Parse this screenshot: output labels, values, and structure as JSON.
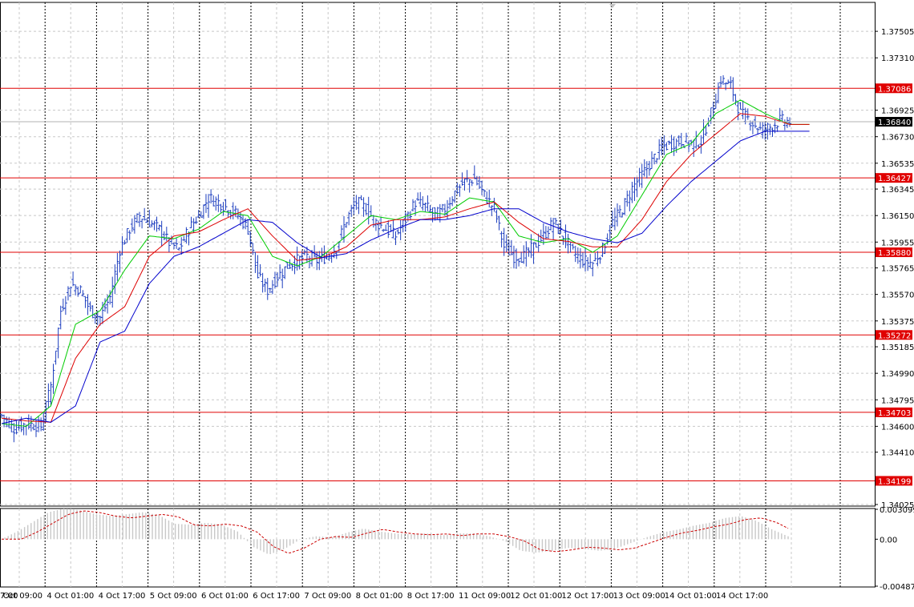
{
  "chart_data": [
    {
      "type": "candlestick",
      "panel": "price",
      "title": "",
      "xlabel": "",
      "ylabel": "",
      "ylim": [
        1.34025,
        1.377
      ],
      "y_ticks": [
        "1.37505",
        "1.37310",
        "1.36925",
        "1.36730",
        "1.36535",
        "1.36345",
        "1.36150",
        "1.35955",
        "1.35765",
        "1.35570",
        "1.35375",
        "1.35185",
        "1.34990",
        "1.34795",
        "1.34600",
        "1.34410",
        "1.34025"
      ],
      "x_ticks": [
        "7:00",
        "1 Oct 09:00",
        "4 Oct 01:00",
        "4 Oct 17:00",
        "5 Oct 09:00",
        "6 Oct 01:00",
        "6 Oct 17:00",
        "7 Oct 09:00",
        "8 Oct 01:00",
        "8 Oct 17:00",
        "11 Oct 09:00",
        "12 Oct 01:00",
        "12 Oct 17:00",
        "13 Oct 09:00",
        "14 Oct 01:00",
        "14 Oct 17:00"
      ],
      "grid": true,
      "horizontal_levels": [
        {
          "value": 1.37086,
          "label": "1.37086"
        },
        {
          "value": 1.36427,
          "label": "1.36427"
        },
        {
          "value": 1.3588,
          "label": "1.35880"
        },
        {
          "value": 1.35272,
          "label": "1.35272"
        },
        {
          "value": 1.34703,
          "label": "1.34703"
        },
        {
          "value": 1.34199,
          "label": "1.34199"
        }
      ],
      "current_price": {
        "value": 1.3684,
        "label": "1.36840"
      },
      "price_path": [
        [
          0,
          1.3468
        ],
        [
          5,
          1.3458
        ],
        [
          10,
          1.3462
        ],
        [
          16,
          1.346
        ],
        [
          20,
          1.349
        ],
        [
          24,
          1.3545
        ],
        [
          28,
          1.3565
        ],
        [
          32,
          1.356
        ],
        [
          36,
          1.3545
        ],
        [
          40,
          1.354
        ],
        [
          44,
          1.3555
        ],
        [
          48,
          1.359
        ],
        [
          52,
          1.3605
        ],
        [
          56,
          1.3615
        ],
        [
          60,
          1.361
        ],
        [
          64,
          1.3605
        ],
        [
          68,
          1.3595
        ],
        [
          72,
          1.359
        ],
        [
          76,
          1.3605
        ],
        [
          80,
          1.3615
        ],
        [
          84,
          1.3628
        ],
        [
          88,
          1.3625
        ],
        [
          92,
          1.362
        ],
        [
          96,
          1.3615
        ],
        [
          100,
          1.3605
        ],
        [
          104,
          1.357
        ],
        [
          108,
          1.356
        ],
        [
          112,
          1.357
        ],
        [
          116,
          1.3578
        ],
        [
          120,
          1.3582
        ],
        [
          124,
          1.3585
        ],
        [
          128,
          1.3582
        ],
        [
          132,
          1.3585
        ],
        [
          136,
          1.3592
        ],
        [
          140,
          1.3612
        ],
        [
          144,
          1.3625
        ],
        [
          148,
          1.362
        ],
        [
          152,
          1.361
        ],
        [
          156,
          1.3605
        ],
        [
          160,
          1.36
        ],
        [
          164,
          1.3612
        ],
        [
          168,
          1.3625
        ],
        [
          172,
          1.3622
        ],
        [
          176,
          1.3615
        ],
        [
          180,
          1.362
        ],
        [
          184,
          1.3632
        ],
        [
          188,
          1.364
        ],
        [
          192,
          1.3642
        ],
        [
          196,
          1.363
        ],
        [
          200,
          1.362
        ],
        [
          204,
          1.3592
        ],
        [
          208,
          1.3585
        ],
        [
          212,
          1.3585
        ],
        [
          216,
          1.3592
        ],
        [
          220,
          1.36
        ],
        [
          224,
          1.361
        ],
        [
          228,
          1.36
        ],
        [
          232,
          1.3588
        ],
        [
          236,
          1.3582
        ],
        [
          240,
          1.358
        ],
        [
          244,
          1.359
        ],
        [
          248,
          1.361
        ],
        [
          252,
          1.362
        ],
        [
          256,
          1.3635
        ],
        [
          260,
          1.3645
        ],
        [
          264,
          1.3655
        ],
        [
          268,
          1.3665
        ],
        [
          272,
          1.3668
        ],
        [
          276,
          1.367
        ],
        [
          280,
          1.3668
        ],
        [
          284,
          1.367
        ],
        [
          288,
          1.369
        ],
        [
          292,
          1.3715
        ],
        [
          296,
          1.371
        ],
        [
          300,
          1.369
        ],
        [
          304,
          1.3685
        ],
        [
          308,
          1.3678
        ],
        [
          312,
          1.368
        ],
        [
          316,
          1.3685
        ],
        [
          320,
          1.3684
        ]
      ],
      "moving_averages": [
        {
          "color": "#00cc00",
          "points": [
            [
              0,
              1.3462
            ],
            [
              10,
              1.346
            ],
            [
              20,
              1.3475
            ],
            [
              30,
              1.3535
            ],
            [
              40,
              1.3545
            ],
            [
              50,
              1.3575
            ],
            [
              60,
              1.36
            ],
            [
              70,
              1.3598
            ],
            [
              80,
              1.3605
            ],
            [
              90,
              1.3618
            ],
            [
              100,
              1.3615
            ],
            [
              110,
              1.3585
            ],
            [
              120,
              1.3578
            ],
            [
              130,
              1.3585
            ],
            [
              140,
              1.36
            ],
            [
              150,
              1.3615
            ],
            [
              160,
              1.3612
            ],
            [
              170,
              1.3618
            ],
            [
              180,
              1.3616
            ],
            [
              190,
              1.3628
            ],
            [
              200,
              1.3625
            ],
            [
              210,
              1.36
            ],
            [
              220,
              1.3595
            ],
            [
              230,
              1.3598
            ],
            [
              240,
              1.3588
            ],
            [
              250,
              1.36
            ],
            [
              260,
              1.363
            ],
            [
              270,
              1.366
            ],
            [
              280,
              1.3668
            ],
            [
              290,
              1.369
            ],
            [
              300,
              1.37
            ],
            [
              310,
              1.369
            ],
            [
              320,
              1.3682
            ]
          ]
        },
        {
          "color": "#dd0000",
          "points": [
            [
              0,
              1.3466
            ],
            [
              10,
              1.3464
            ],
            [
              20,
              1.3463
            ],
            [
              30,
              1.351
            ],
            [
              40,
              1.3535
            ],
            [
              50,
              1.3548
            ],
            [
              60,
              1.3585
            ],
            [
              70,
              1.36
            ],
            [
              80,
              1.3603
            ],
            [
              90,
              1.3612
            ],
            [
              100,
              1.362
            ],
            [
              110,
              1.36
            ],
            [
              120,
              1.3582
            ],
            [
              130,
              1.3584
            ],
            [
              140,
              1.3592
            ],
            [
              150,
              1.3608
            ],
            [
              160,
              1.3612
            ],
            [
              170,
              1.3612
            ],
            [
              180,
              1.3614
            ],
            [
              190,
              1.362
            ],
            [
              200,
              1.3625
            ],
            [
              210,
              1.361
            ],
            [
              220,
              1.3598
            ],
            [
              230,
              1.3596
            ],
            [
              240,
              1.3592
            ],
            [
              250,
              1.3592
            ],
            [
              260,
              1.3612
            ],
            [
              270,
              1.364
            ],
            [
              280,
              1.366
            ],
            [
              290,
              1.3675
            ],
            [
              300,
              1.369
            ],
            [
              310,
              1.3688
            ],
            [
              320,
              1.3682
            ]
          ]
        },
        {
          "color": "#0000cc",
          "points": [
            [
              0,
              1.3462
            ],
            [
              10,
              1.3466
            ],
            [
              20,
              1.3463
            ],
            [
              30,
              1.3475
            ],
            [
              40,
              1.3522
            ],
            [
              50,
              1.353
            ],
            [
              60,
              1.3565
            ],
            [
              70,
              1.3585
            ],
            [
              80,
              1.3592
            ],
            [
              90,
              1.3602
            ],
            [
              100,
              1.3612
            ],
            [
              110,
              1.361
            ],
            [
              120,
              1.3595
            ],
            [
              130,
              1.3584
            ],
            [
              140,
              1.3587
            ],
            [
              150,
              1.3597
            ],
            [
              160,
              1.3605
            ],
            [
              170,
              1.3612
            ],
            [
              180,
              1.3612
            ],
            [
              190,
              1.3615
            ],
            [
              200,
              1.362
            ],
            [
              210,
              1.362
            ],
            [
              220,
              1.361
            ],
            [
              230,
              1.3603
            ],
            [
              240,
              1.3598
            ],
            [
              250,
              1.3595
            ],
            [
              260,
              1.3602
            ],
            [
              270,
              1.3622
            ],
            [
              280,
              1.364
            ],
            [
              290,
              1.3655
            ],
            [
              300,
              1.367
            ],
            [
              310,
              1.3677
            ],
            [
              320,
              1.3677
            ]
          ]
        }
      ],
      "colors": {
        "candles": "#1e3fbf",
        "levels": "#e00000",
        "current_price_box": "#000000",
        "grid": "#c8c8c8",
        "session_lines": "#000000"
      }
    },
    {
      "type": "histogram",
      "panel": "indicator",
      "ylim": [
        -0.00487,
        0.003099
      ],
      "y_ticks": [
        "0.003099",
        "0.00",
        "-0.00487"
      ],
      "values": [
        0.0,
        0.0008,
        0.0018,
        0.0028,
        0.0032,
        0.003,
        0.0026,
        0.0024,
        0.0026,
        0.0028,
        0.0025,
        0.0016,
        0.0015,
        0.0017,
        0.0015,
        0.0008,
        -0.0008,
        -0.0016,
        -0.001,
        0.0,
        0.0003,
        0.0002,
        0.0007,
        0.0011,
        0.0008,
        0.0006,
        0.0005,
        0.0006,
        0.0004,
        0.0006,
        0.0006,
        0.0003,
        -0.0002,
        -0.0012,
        -0.0014,
        -0.0012,
        -0.0009,
        -0.001,
        -0.0012,
        -0.001,
        -0.0004,
        0.0002,
        0.0007,
        0.001,
        0.0014,
        0.0017,
        0.0022,
        0.0024,
        0.0019,
        0.001,
        0.0003
      ],
      "signal_color": "#cc0000",
      "bar_color": "#c8c8c8"
    }
  ]
}
